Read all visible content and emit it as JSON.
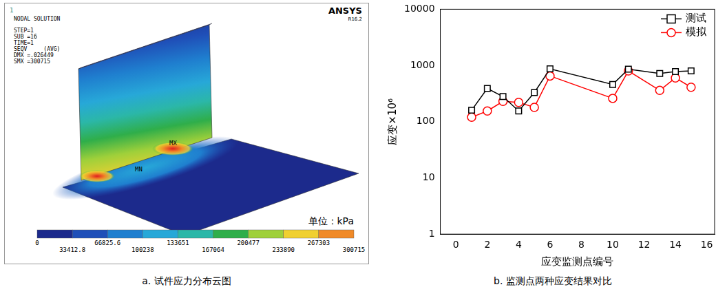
{
  "chart_data": {
    "type": "line",
    "caption": "b. 监测点两种应变结果对比",
    "x_label": "应变监测点编号",
    "y_label": "应变×10⁶",
    "x": [
      1,
      2,
      3,
      4,
      5,
      6,
      10,
      11,
      13,
      14,
      15
    ],
    "series": [
      {
        "name": "测试",
        "color": "#000000",
        "marker": "square",
        "line_style": "solid",
        "values": [
          160,
          390,
          280,
          155,
          330,
          870,
          460,
          860,
          720,
          780,
          800
        ]
      },
      {
        "name": "模拟",
        "color": "#ff0000",
        "marker": "circle",
        "line_style": "solid",
        "values": [
          120,
          155,
          230,
          220,
          180,
          650,
          260,
          800,
          360,
          600,
          410
        ]
      }
    ],
    "xlim": [
      -1,
      16.5
    ],
    "xticks": [
      0,
      2,
      4,
      6,
      8,
      10,
      12,
      14,
      16
    ],
    "ylim": [
      1,
      10000
    ],
    "yticks": [
      1,
      10,
      100,
      1000,
      10000
    ],
    "log": "y",
    "grid": false,
    "legend": "top-right"
  },
  "panel_a": {
    "caption": "a. 试件应力分布云图",
    "number": "1",
    "lines": [
      "NODAL SOLUTION",
      "STEP=1",
      "SUB =16",
      "TIME=1",
      "SEQV     (AVG)",
      "DMX =.026449",
      "SMX =300715"
    ],
    "logo": "ANSYS",
    "version": "R16.2",
    "min_label": "MN",
    "max_label": "MX",
    "unit": "单位：kPa",
    "colorbar": {
      "ticks": [
        0,
        33412.8,
        66825.6,
        100238,
        133651,
        167064,
        200477,
        233890,
        267303,
        300715
      ],
      "colors": [
        "#1c2a8c",
        "#1f4fb8",
        "#1f7fcf",
        "#27a8d8",
        "#2bb7a8",
        "#2fae4a",
        "#9fd03a",
        "#f0d030",
        "#f08a28",
        "#e02020"
      ]
    }
  }
}
